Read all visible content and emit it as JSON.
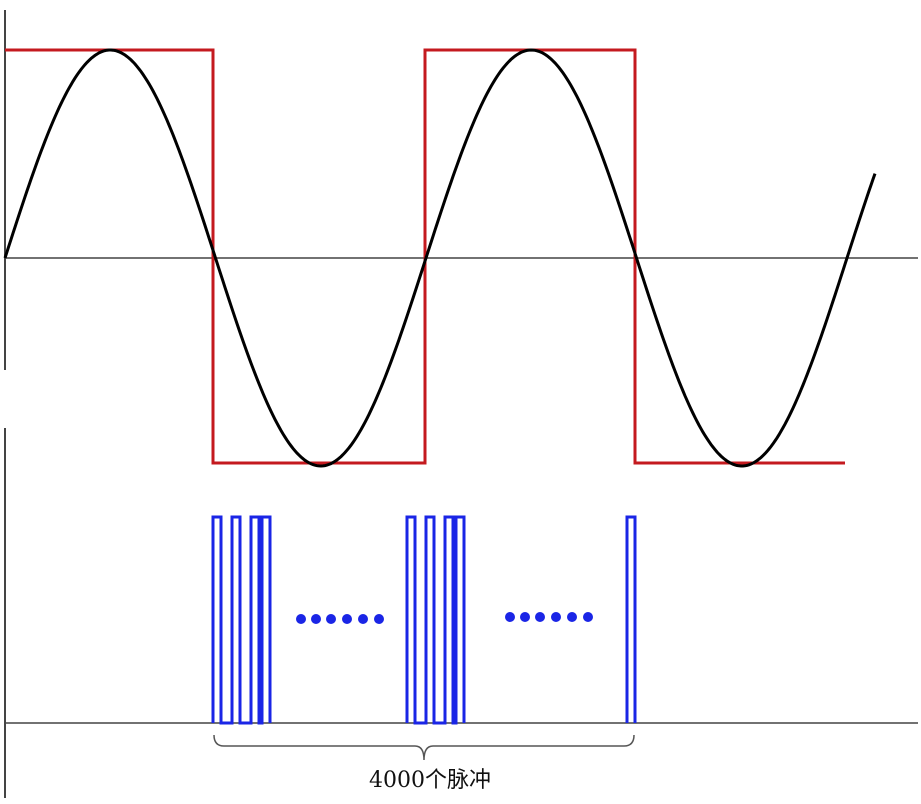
{
  "caption": "4000个脉冲",
  "colors": {
    "sine": "#000000",
    "square": "#c41a1f",
    "pulse": "#1a25e6",
    "axis": "#444444",
    "brace": "#555555"
  },
  "diagram": {
    "waveforms": [
      "sine-wave",
      "square-wave"
    ],
    "pulse_train": {
      "groups": [
        {
          "pulses": 4
        },
        {
          "pulses": 4
        },
        {
          "pulses": 1
        }
      ],
      "ellipsis_dots": 6
    }
  }
}
